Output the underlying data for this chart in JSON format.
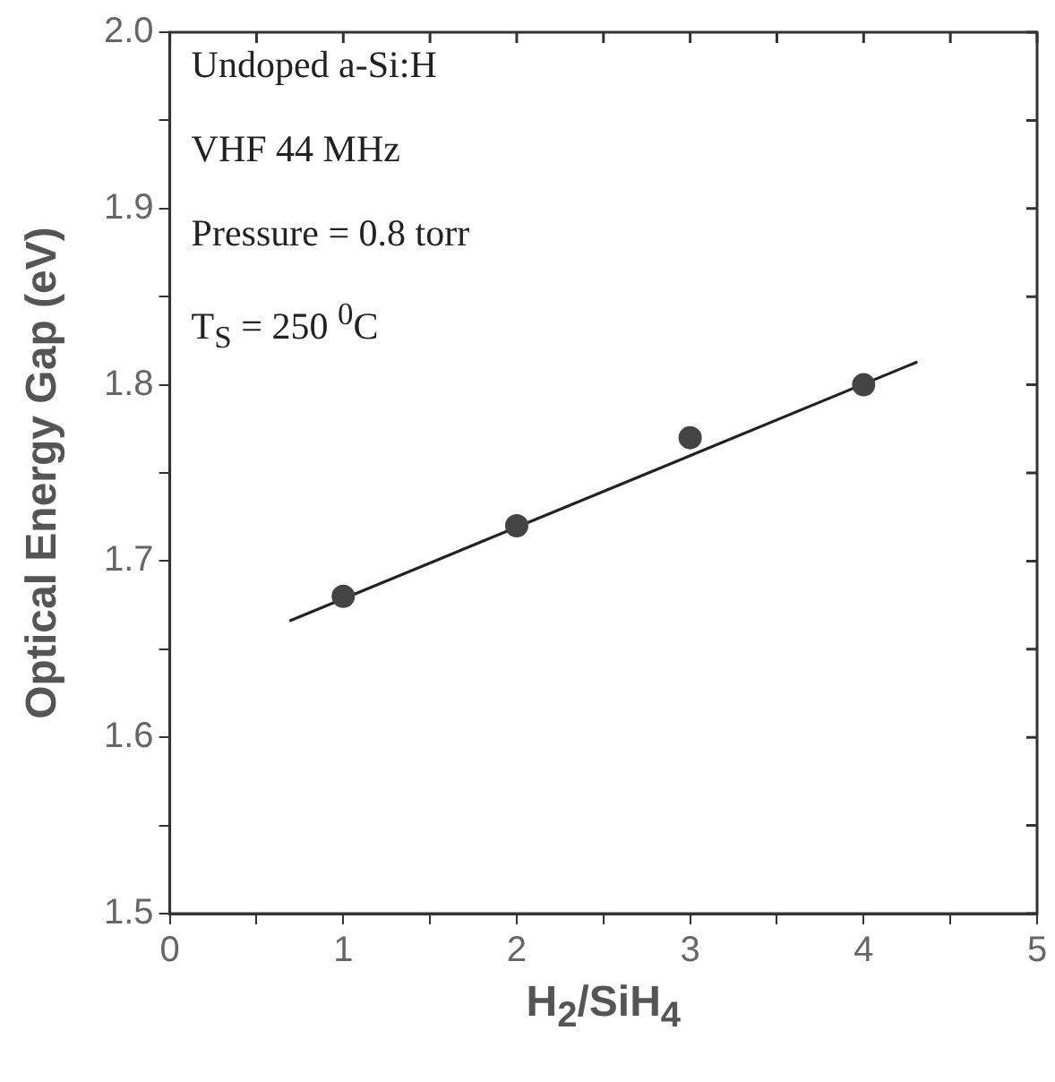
{
  "chart_data": {
    "type": "scatter",
    "xlabel": "H$_{2}$/SiH$_{4}$",
    "ylabel": "Optical Energy Gap (eV)",
    "annotations": [
      "Undoped a-Si:H",
      "VHF 44 MHz",
      "Pressure = 0.8 torr",
      "T$_{S}$ = 250 $^{0}$C"
    ],
    "series": [
      {
        "color": "#444444",
        "marker": "circle",
        "x": [
          1,
          2,
          3,
          4
        ],
        "values": [
          1.68,
          1.72,
          1.77,
          1.8
        ]
      },
      {
        "type": "line",
        "color": "#222222",
        "marker": "none",
        "line_style": "solid",
        "x": [
          0.69,
          4.31
        ],
        "values": [
          1.666,
          1.813
        ]
      }
    ],
    "xlim": [
      0,
      5
    ],
    "xticks": [
      0,
      {
        "value": 0.5,
        "label": null
      },
      1,
      {
        "value": 1.5,
        "label": null
      },
      2,
      {
        "value": 2.5,
        "label": null
      },
      3,
      {
        "value": 3.5,
        "label": null
      },
      4,
      {
        "value": 4.5,
        "label": null
      },
      5
    ],
    "ylim": [
      1.5,
      2.0
    ],
    "yticks": [
      1.5,
      {
        "value": 1.55,
        "label": null
      },
      1.6,
      {
        "value": 1.65,
        "label": null
      },
      1.7,
      {
        "value": 1.75,
        "label": null
      },
      1.8,
      {
        "value": 1.85,
        "label": null
      },
      1.9,
      {
        "value": 1.95,
        "label": null
      },
      {
        "value": 2.0,
        "label": "2.0"
      }
    ],
    "grid": false,
    "legend": false
  }
}
